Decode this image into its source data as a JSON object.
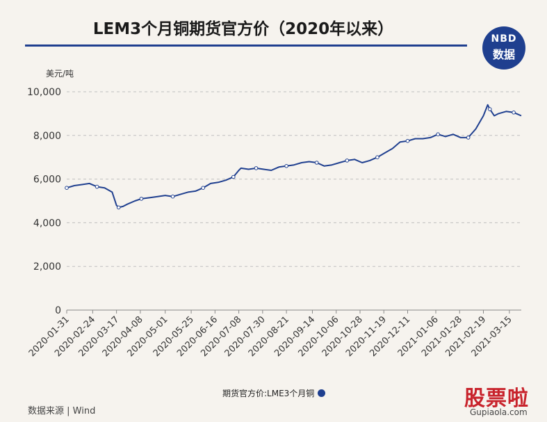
{
  "header": {
    "title": "LEM3个月铜期货官方价（2020年以来）",
    "badge_top": "NBD",
    "badge_bottom": "数据"
  },
  "footer": {
    "source": "数据来源 | Wind",
    "watermark_main": "股票啦",
    "watermark_sub": "Gupiaola.com"
  },
  "colors": {
    "line": "#1f3f8f",
    "grid": "#bfbfbf",
    "background": "#f6f3ee"
  },
  "chart_data": {
    "type": "line",
    "ylabel": "美元/吨",
    "ylim": [
      0,
      10000
    ],
    "yticks": [
      0,
      2000,
      4000,
      6000,
      8000,
      10000
    ],
    "ytick_labels": [
      "0",
      "2,000",
      "4,000",
      "6,000",
      "8,000",
      "10,000"
    ],
    "grid": true,
    "legend_position": "bottom-center",
    "xtick_labels": [
      "2020-01-31",
      "2020-02-24",
      "2020-03-17",
      "2020-04-08",
      "2020-05-01",
      "2020-05-25",
      "2020-06-16",
      "2020-07-08",
      "2020-07-30",
      "2020-08-21",
      "2020-09-14",
      "2020-10-06",
      "2020-10-28",
      "2020-11-19",
      "2020-12-11",
      "2021-01-06",
      "2021-01-28",
      "2021-02-19",
      "2021-03-15"
    ],
    "series": [
      {
        "name": "期货官方价:LME3个月铜",
        "x": [
          "2020-01-31",
          "2020-02-07",
          "2020-02-14",
          "2020-02-21",
          "2020-02-28",
          "2020-03-06",
          "2020-03-13",
          "2020-03-17",
          "2020-03-19",
          "2020-03-23",
          "2020-03-27",
          "2020-04-03",
          "2020-04-09",
          "2020-04-17",
          "2020-04-24",
          "2020-05-01",
          "2020-05-08",
          "2020-05-15",
          "2020-05-22",
          "2020-05-29",
          "2020-06-05",
          "2020-06-12",
          "2020-06-19",
          "2020-06-26",
          "2020-07-03",
          "2020-07-08",
          "2020-07-10",
          "2020-07-17",
          "2020-07-24",
          "2020-07-31",
          "2020-08-07",
          "2020-08-14",
          "2020-08-21",
          "2020-08-28",
          "2020-09-04",
          "2020-09-11",
          "2020-09-18",
          "2020-09-25",
          "2020-10-02",
          "2020-10-09",
          "2020-10-16",
          "2020-10-23",
          "2020-10-30",
          "2020-11-06",
          "2020-11-13",
          "2020-11-20",
          "2020-11-27",
          "2020-12-04",
          "2020-12-11",
          "2020-12-18",
          "2020-12-25",
          "2021-01-01",
          "2021-01-08",
          "2021-01-15",
          "2021-01-22",
          "2021-01-29",
          "2021-02-05",
          "2021-02-12",
          "2021-02-19",
          "2021-02-23",
          "2021-02-25",
          "2021-03-01",
          "2021-03-05",
          "2021-03-12",
          "2021-03-19",
          "2021-03-26"
        ],
        "values": [
          5600,
          5700,
          5750,
          5800,
          5650,
          5600,
          5400,
          4800,
          4700,
          4750,
          4850,
          5000,
          5100,
          5150,
          5200,
          5250,
          5200,
          5300,
          5400,
          5450,
          5600,
          5800,
          5850,
          5950,
          6100,
          6400,
          6500,
          6450,
          6500,
          6450,
          6400,
          6550,
          6600,
          6650,
          6750,
          6800,
          6750,
          6600,
          6650,
          6750,
          6850,
          6900,
          6750,
          6850,
          7000,
          7200,
          7400,
          7700,
          7750,
          7850,
          7850,
          7900,
          8050,
          7950,
          8050,
          7900,
          7900,
          8300,
          8900,
          9400,
          9200,
          8900,
          9000,
          9100,
          9050,
          8900
        ]
      }
    ]
  }
}
